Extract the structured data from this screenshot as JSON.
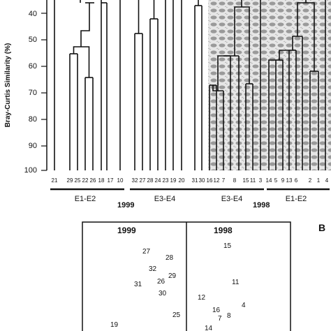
{
  "figure": {
    "dendrogram": {
      "y_axis_label": "Bray-Curtis Similarity (%)",
      "y_ticks": [
        "40",
        "50",
        "60",
        "70",
        "80",
        "90",
        "100"
      ],
      "leaf_labels": [
        "21",
        "29",
        "25",
        "22",
        "26",
        "18",
        "17",
        "10",
        "32",
        "27",
        "28",
        "24",
        "23",
        "19",
        "20",
        "31",
        "30",
        "16",
        "12",
        "7",
        "8",
        "15",
        "11",
        "3",
        "14",
        "5",
        "9",
        "13",
        "6",
        "2",
        "1",
        "4"
      ],
      "groups": [
        {
          "label": "E1-E2"
        },
        {
          "label": "E3-E4"
        },
        {
          "label": "E3-E4"
        },
        {
          "label": "E1-E2"
        }
      ],
      "years": {
        "left": "1999",
        "right": "1998"
      }
    },
    "nmds": {
      "panel_letter": "B",
      "left_title": "1999",
      "right_title": "1998",
      "points": [
        {
          "label": "27"
        },
        {
          "label": "28"
        },
        {
          "label": "32"
        },
        {
          "label": "29"
        },
        {
          "label": "31"
        },
        {
          "label": "26"
        },
        {
          "label": "30"
        },
        {
          "label": "25"
        },
        {
          "label": "19"
        },
        {
          "label": "15"
        },
        {
          "label": "11"
        },
        {
          "label": "12"
        },
        {
          "label": "16"
        },
        {
          "label": "4"
        },
        {
          "label": "7"
        },
        {
          "label": "8"
        },
        {
          "label": "14"
        }
      ]
    }
  }
}
